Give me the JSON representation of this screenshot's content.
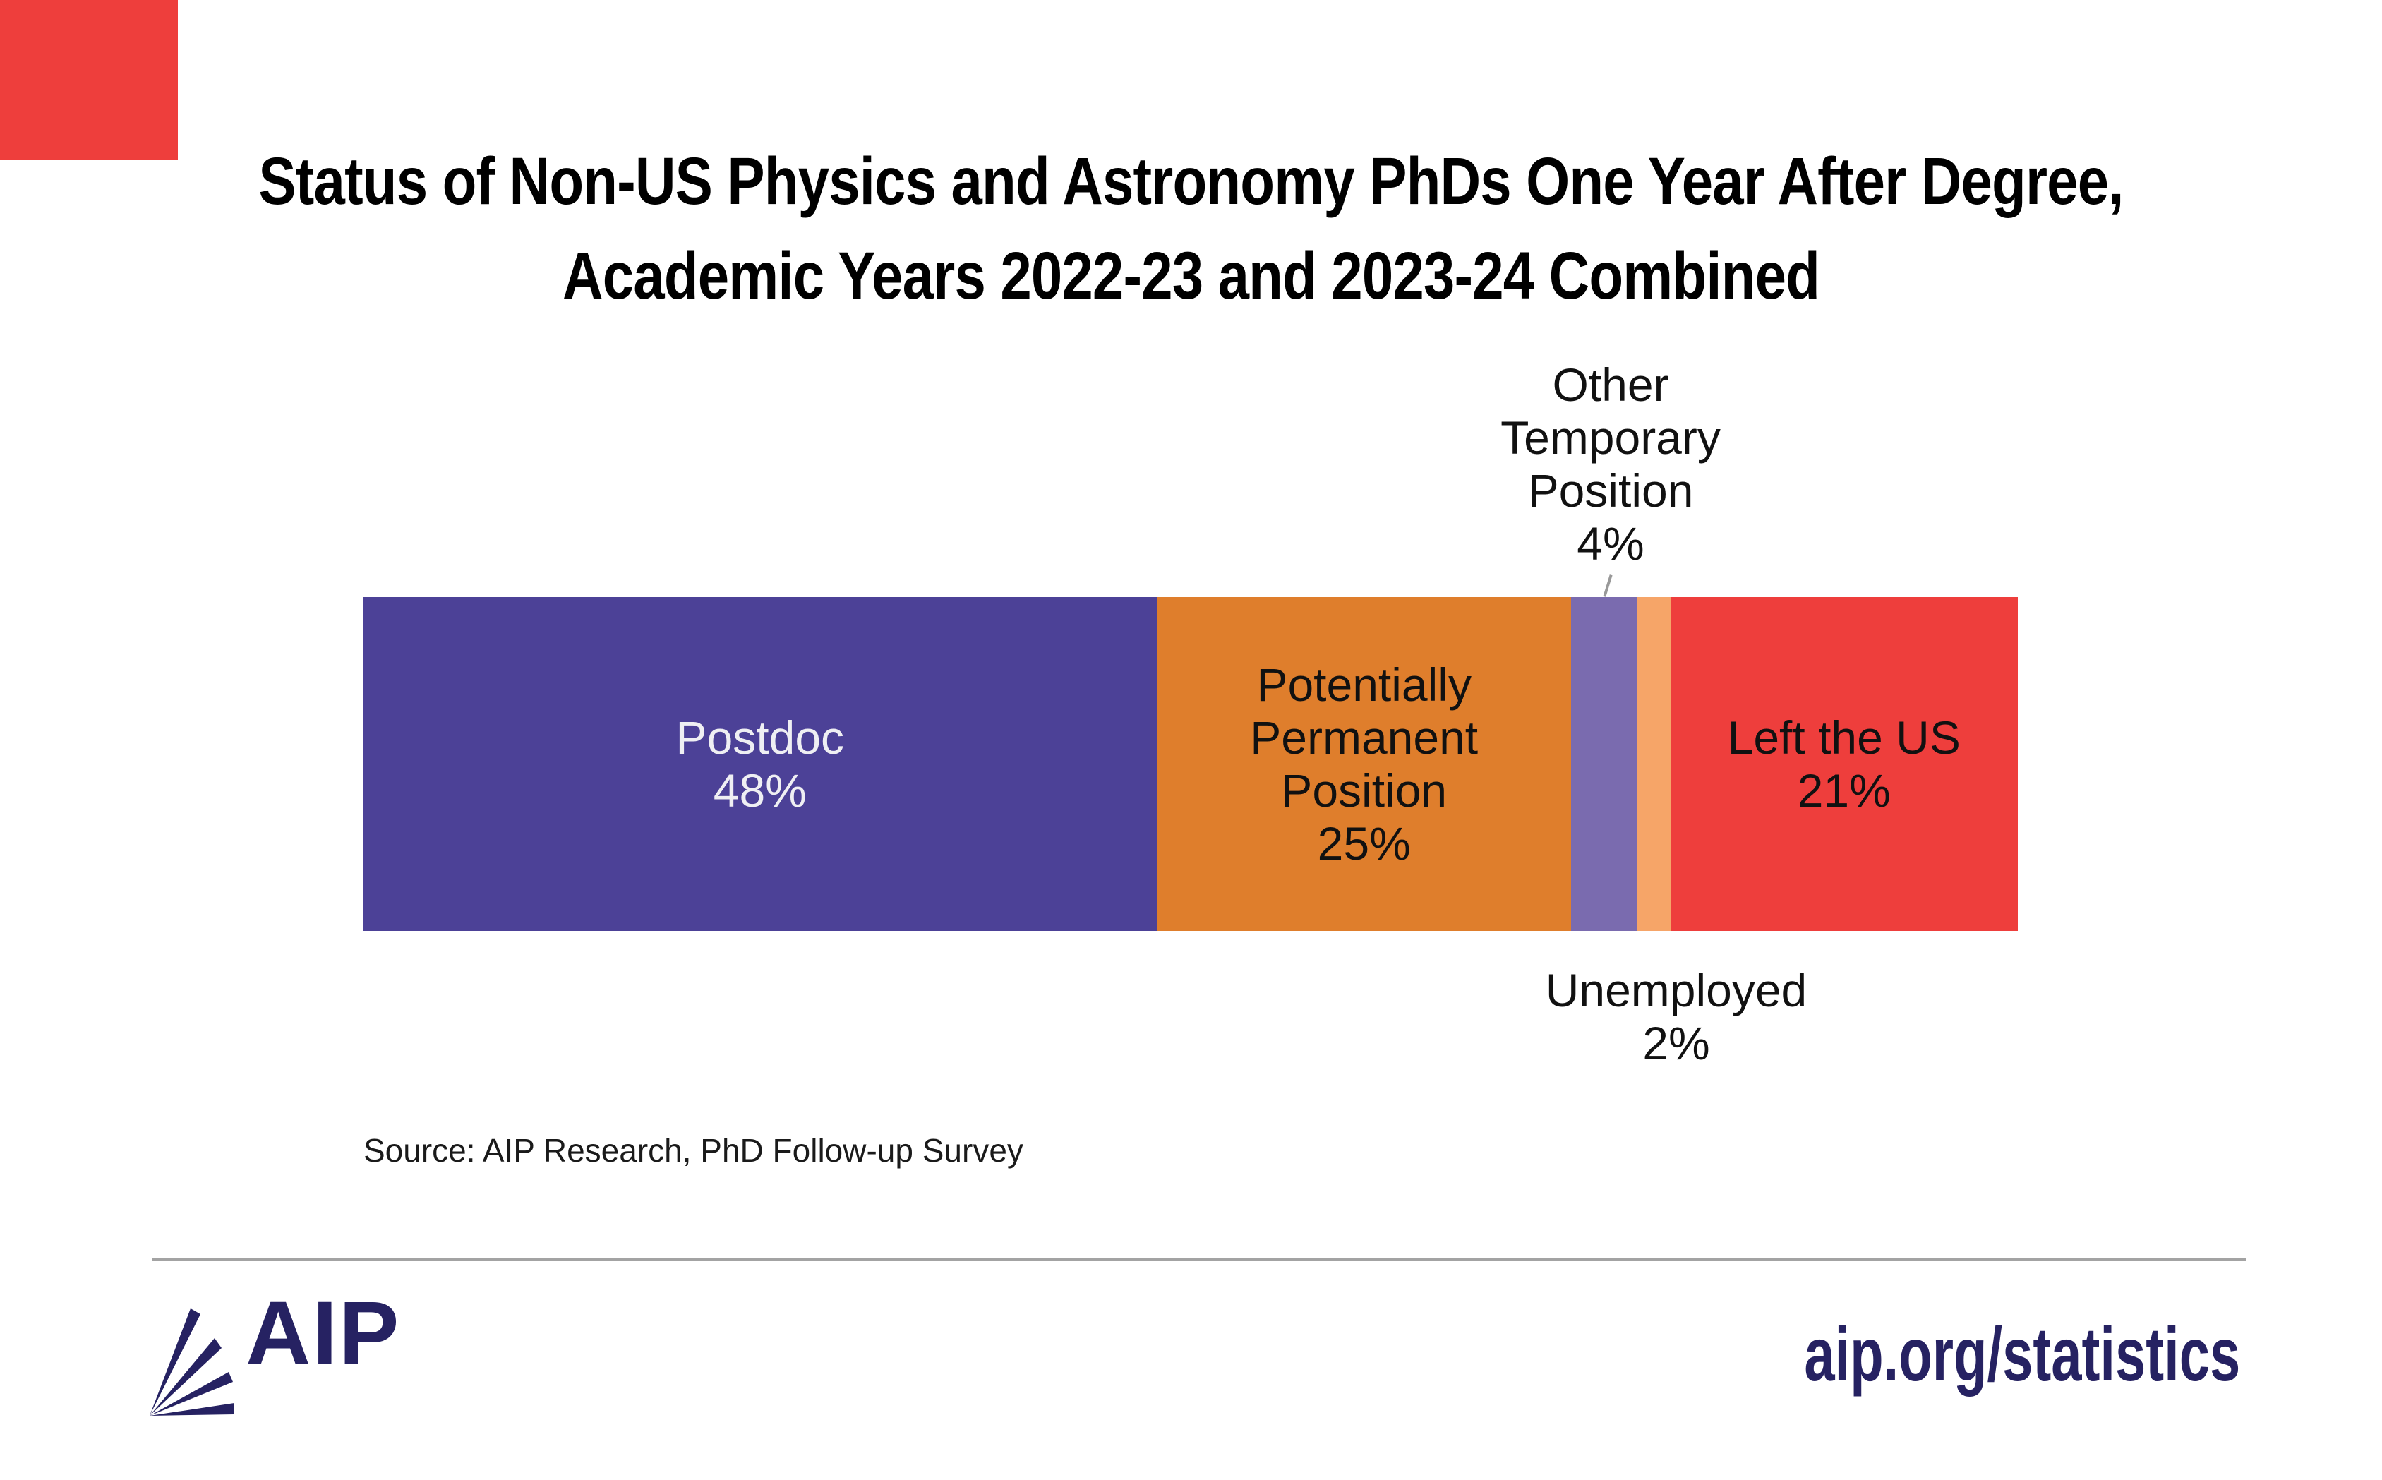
{
  "page": {
    "corner_tab_color": "#EE3E3C",
    "divider_color": "#A3A3A3",
    "leader_line_color": "#999999"
  },
  "title": {
    "line1": "Status of Non-US Physics and Astronomy PhDs One Year After Degree,",
    "line2": "Academic Years 2022-23 and 2023-24 Combined"
  },
  "chart_data": {
    "type": "bar",
    "orientation": "horizontal",
    "stacked": true,
    "unit": "%",
    "total": 100,
    "title": "Status of Non-US Physics and Astronomy PhDs One Year After Degree, Academic Years 2022-23 and 2023-24 Combined",
    "categories": [
      "Postdoc",
      "Potentially Permanent Position",
      "Other Temporary Position",
      "Unemployed",
      "Left the US"
    ],
    "values": [
      48,
      25,
      4,
      2,
      21
    ],
    "legend": "none",
    "axes": "hidden",
    "segments": [
      {
        "name": "Postdoc",
        "value": 48,
        "color": "#4C4197",
        "label_lines": [
          "Postdoc",
          "48%"
        ],
        "label_placement": "inside",
        "label_color": "#EFEFF3"
      },
      {
        "name": "Potentially Permanent Position",
        "value": 25,
        "color": "#DF7E2C",
        "label_lines": [
          "Potentially",
          "Permanent",
          "Position",
          "25%"
        ],
        "label_placement": "inside",
        "label_color": "#111111"
      },
      {
        "name": "Other Temporary Position",
        "value": 4,
        "color": "#7A6BAF",
        "label_lines": [
          "Other",
          "Temporary",
          "Position",
          "4%"
        ],
        "label_placement": "above",
        "label_color": "#111111"
      },
      {
        "name": "Unemployed",
        "value": 2,
        "color": "#F6A568",
        "label_lines": [
          "Unemployed",
          "2%"
        ],
        "label_placement": "below",
        "label_color": "#111111"
      },
      {
        "name": "Left the US",
        "value": 21,
        "color": "#EE3E3C",
        "label_lines": [
          "Left the US",
          "21%"
        ],
        "label_placement": "inside",
        "label_color": "#111111"
      }
    ]
  },
  "source_note": "Source: AIP Research, PhD Follow-up Survey",
  "footer": {
    "logo_text": "AIP",
    "logo_color": "#262262",
    "url": "aip.org/statistics"
  }
}
